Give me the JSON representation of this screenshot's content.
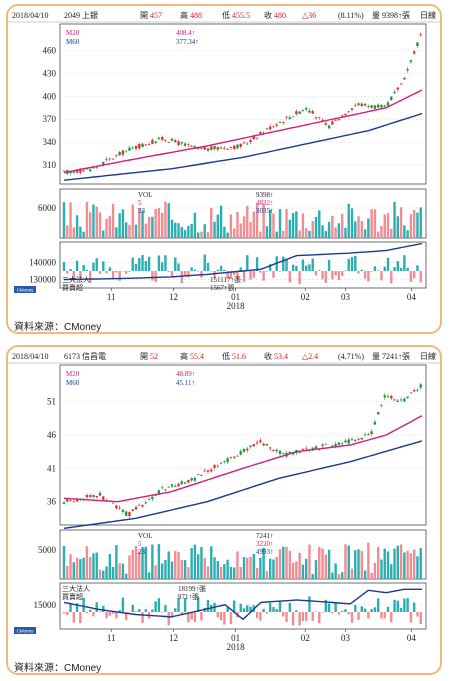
{
  "source_label": "資料來源：CMoney",
  "cmoney_logo_text": "CMoney",
  "charts": [
    {
      "header": {
        "date": "2018/04/10",
        "stock": "2049 上銀",
        "open_label": "開",
        "open": "457",
        "high_label": "高",
        "high": "488",
        "low_label": "低",
        "low": "455.5",
        "close_label": "收",
        "close": "480",
        "change": "△36",
        "change_pct": "(8.11%)",
        "vol_label": "量",
        "vol": "9398",
        "unit": "張",
        "period": "日線"
      },
      "price_legend": [
        {
          "name": "M20",
          "value": "408.4↑",
          "color": "#d0207a"
        },
        {
          "name": "M60",
          "value": "377.34↑",
          "color": "#1a3a8a"
        }
      ],
      "vol_legend": {
        "title": "VOL",
        "rows": [
          {
            "k": "5",
            "v": "4832↑",
            "color": "#d0207a"
          },
          {
            "k": "23",
            "v": "3035↑",
            "color": "#1a3a8a"
          }
        ],
        "top": "9398↑"
      },
      "inst_legend": {
        "title": "三大法人",
        "sub": "買賣超",
        "v1": "151117↑張",
        "v2": "1567↑張"
      },
      "x_ticks": [
        "11",
        "12",
        "01",
        "02",
        "03",
        "04"
      ],
      "x_year": "2018"
    },
    {
      "header": {
        "date": "2018/04/10",
        "stock": "6173 信昌電",
        "open_label": "開",
        "open": "52",
        "high_label": "高",
        "high": "55.4",
        "low_label": "低",
        "low": "51.6",
        "close_label": "收",
        "close": "53.4",
        "change": "△2.4",
        "change_pct": "(4.71%)",
        "vol_label": "量",
        "vol": "7241",
        "unit": "張",
        "period": "日線"
      },
      "price_legend": [
        {
          "name": "M20",
          "value": "48.89↑",
          "color": "#d0207a"
        },
        {
          "name": "M60",
          "value": "45.11↑",
          "color": "#1a3a8a"
        }
      ],
      "vol_legend": {
        "title": "VOL",
        "rows": [
          {
            "k": "5",
            "v": "3220↑",
            "color": "#d0207a"
          },
          {
            "k": "23",
            "v": "4993↑",
            "color": "#1a3a8a"
          }
        ],
        "top": "7241↑"
      },
      "inst_legend": {
        "title": "三大法人",
        "sub": "買賣超",
        "v1": "18199↑張",
        "v2": "971↑張"
      },
      "x_ticks": [
        "11",
        "12",
        "01",
        "02",
        "03",
        "04"
      ],
      "x_year": "2018"
    }
  ],
  "chart_data": [
    {
      "type": "line",
      "title": "2049 上銀",
      "price_axis": {
        "ticks": [
          310,
          340,
          370,
          400,
          430,
          460
        ],
        "ylim": [
          285,
          495
        ]
      },
      "volume_axis": {
        "ticks": [
          6000
        ],
        "ylim": [
          0,
          9800
        ]
      },
      "inst_axis": {
        "ticks": [
          130000,
          140000
        ],
        "ylim": [
          125000,
          152000
        ]
      },
      "price_keypoints": [
        [
          0,
          300
        ],
        [
          0.08,
          305
        ],
        [
          0.18,
          330
        ],
        [
          0.28,
          345
        ],
        [
          0.38,
          330
        ],
        [
          0.5,
          335
        ],
        [
          0.58,
          360
        ],
        [
          0.68,
          385
        ],
        [
          0.74,
          360
        ],
        [
          0.82,
          390
        ],
        [
          0.9,
          385
        ],
        [
          0.95,
          420
        ],
        [
          1.0,
          480
        ]
      ],
      "m20_keypoints": [
        [
          0.0,
          300
        ],
        [
          0.2,
          318
        ],
        [
          0.4,
          335
        ],
        [
          0.6,
          355
        ],
        [
          0.75,
          370
        ],
        [
          0.9,
          385
        ],
        [
          1.0,
          408.4
        ]
      ],
      "m60_keypoints": [
        [
          0.0,
          290
        ],
        [
          0.3,
          305
        ],
        [
          0.5,
          320
        ],
        [
          0.7,
          340
        ],
        [
          0.85,
          355
        ],
        [
          1.0,
          377.34
        ]
      ],
      "inst_keypoints": [
        [
          0,
          130000
        ],
        [
          0.15,
          130500
        ],
        [
          0.3,
          131500
        ],
        [
          0.4,
          133000
        ],
        [
          0.55,
          136000
        ],
        [
          0.65,
          144000
        ],
        [
          0.8,
          145500
        ],
        [
          0.9,
          147000
        ],
        [
          1.0,
          151117
        ]
      ]
    },
    {
      "type": "line",
      "title": "6173 信昌電",
      "price_axis": {
        "ticks": [
          36,
          41,
          46,
          51
        ],
        "ylim": [
          32.5,
          56.5
        ]
      },
      "volume_axis": {
        "ticks": [
          5000
        ],
        "ylim": [
          0,
          8500
        ]
      },
      "inst_axis": {
        "ticks": [
          15000
        ],
        "ylim": [
          10000,
          19500
        ]
      },
      "price_keypoints": [
        [
          0,
          36
        ],
        [
          0.1,
          37
        ],
        [
          0.18,
          34
        ],
        [
          0.28,
          38
        ],
        [
          0.35,
          39
        ],
        [
          0.45,
          42
        ],
        [
          0.55,
          45
        ],
        [
          0.62,
          43
        ],
        [
          0.7,
          44
        ],
        [
          0.8,
          45
        ],
        [
          0.86,
          46
        ],
        [
          0.9,
          52
        ],
        [
          0.95,
          51
        ],
        [
          1.0,
          53.4
        ]
      ],
      "m20_keypoints": [
        [
          0.0,
          36.5
        ],
        [
          0.15,
          36
        ],
        [
          0.3,
          37.5
        ],
        [
          0.5,
          41
        ],
        [
          0.65,
          43.5
        ],
        [
          0.8,
          44.5
        ],
        [
          0.9,
          46
        ],
        [
          1.0,
          48.89
        ]
      ],
      "m60_keypoints": [
        [
          0.0,
          32
        ],
        [
          0.2,
          33.5
        ],
        [
          0.4,
          36
        ],
        [
          0.6,
          39.5
        ],
        [
          0.8,
          42
        ],
        [
          1.0,
          45.11
        ]
      ],
      "inst_keypoints": [
        [
          0,
          15500
        ],
        [
          0.1,
          14000
        ],
        [
          0.2,
          13000
        ],
        [
          0.3,
          12500
        ],
        [
          0.45,
          15000
        ],
        [
          0.5,
          12000
        ],
        [
          0.55,
          15500
        ],
        [
          0.65,
          16000
        ],
        [
          0.8,
          15200
        ],
        [
          0.85,
          18000
        ],
        [
          0.9,
          17500
        ],
        [
          0.95,
          18200
        ],
        [
          1.0,
          18199
        ]
      ]
    }
  ]
}
